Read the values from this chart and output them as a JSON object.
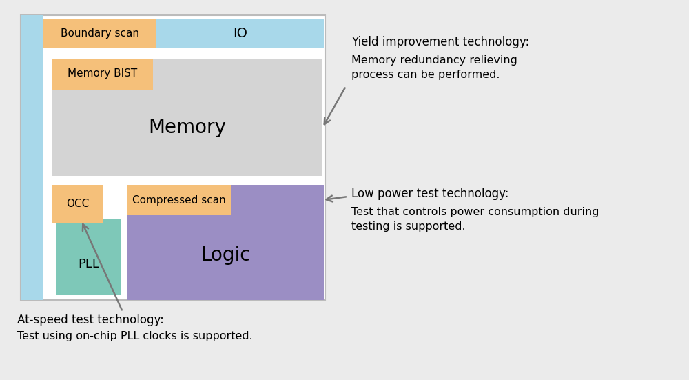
{
  "bg_color": "#ebebeb",
  "diagram_bg": "#ffffff",
  "diagram_border": "#bbbbbb",
  "io_color": "#a8d8ea",
  "orange_color": "#f5c07a",
  "memory_color": "#d4d4d4",
  "logic_color": "#9b8ec4",
  "pll_color": "#7ec8b8",
  "blue_bar_color": "#a8d8ea",
  "boundary_scan_label": "Boundary scan",
  "io_label": "IO",
  "memory_bist_label": "Memory BIST",
  "memory_label": "Memory",
  "occ_label": "OCC",
  "compressed_scan_label": "Compressed scan",
  "logic_label": "Logic",
  "pll_label": "PLL",
  "text1_title": "Yield improvement technology:",
  "text1_body": "Memory redundancy relieving\nprocess can be performed.",
  "text2_title": "Low power test technology:",
  "text2_body": "Test that controls power consumption during\ntesting is supported.",
  "text3_title": "At-speed test technology:",
  "text3_body": "Test using on-chip PLL clocks is supported.",
  "arrow_color": "#777777"
}
